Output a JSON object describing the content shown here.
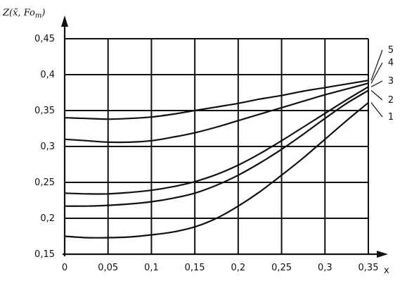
{
  "chart_data": {
    "type": "line",
    "ylabel": "Z(x̃, Fo",
    "ylabel_sub": "m",
    "ylabel_close": ")",
    "xlabel": "x",
    "xlim": [
      0,
      0.35
    ],
    "ylim": [
      0.15,
      0.45
    ],
    "grid": true,
    "x_ticks": [
      {
        "value": 0,
        "label": "0"
      },
      {
        "value": 0.05,
        "label": "0,05"
      },
      {
        "value": 0.1,
        "label": "0,1"
      },
      {
        "value": 0.15,
        "label": "0,15"
      },
      {
        "value": 0.2,
        "label": "0,2"
      },
      {
        "value": 0.25,
        "label": "0,25"
      },
      {
        "value": 0.3,
        "label": "0,3"
      },
      {
        "value": 0.35,
        "label": "0,35"
      }
    ],
    "y_ticks": [
      {
        "value": 0.15,
        "label": "0,15"
      },
      {
        "value": 0.2,
        "label": "0,2"
      },
      {
        "value": 0.25,
        "label": "0,25"
      },
      {
        "value": 0.3,
        "label": "0,3"
      },
      {
        "value": 0.35,
        "label": "0,35"
      },
      {
        "value": 0.4,
        "label": "0,4"
      },
      {
        "value": 0.45,
        "label": "0,45"
      }
    ],
    "x": [
      0,
      0.025,
      0.05,
      0.075,
      0.1,
      0.125,
      0.15,
      0.175,
      0.2,
      0.225,
      0.25,
      0.275,
      0.3,
      0.325,
      0.35
    ],
    "series": [
      {
        "label": "1",
        "values": [
          0.175,
          0.173,
          0.173,
          0.174,
          0.177,
          0.181,
          0.188,
          0.2,
          0.217,
          0.237,
          0.26,
          0.284,
          0.31,
          0.336,
          0.361
        ]
      },
      {
        "label": "2",
        "values": [
          0.217,
          0.217,
          0.218,
          0.22,
          0.223,
          0.228,
          0.235,
          0.246,
          0.26,
          0.277,
          0.296,
          0.317,
          0.339,
          0.36,
          0.378
        ]
      },
      {
        "label": "3",
        "values": [
          0.235,
          0.234,
          0.234,
          0.236,
          0.239,
          0.244,
          0.251,
          0.261,
          0.274,
          0.29,
          0.308,
          0.327,
          0.346,
          0.365,
          0.383
        ]
      },
      {
        "label": "4",
        "values": [
          0.31,
          0.308,
          0.306,
          0.306,
          0.308,
          0.313,
          0.319,
          0.327,
          0.336,
          0.345,
          0.354,
          0.363,
          0.372,
          0.38,
          0.388
        ]
      },
      {
        "label": "5",
        "values": [
          0.34,
          0.339,
          0.338,
          0.339,
          0.341,
          0.345,
          0.35,
          0.355,
          0.36,
          0.366,
          0.371,
          0.377,
          0.382,
          0.387,
          0.392
        ]
      }
    ]
  }
}
